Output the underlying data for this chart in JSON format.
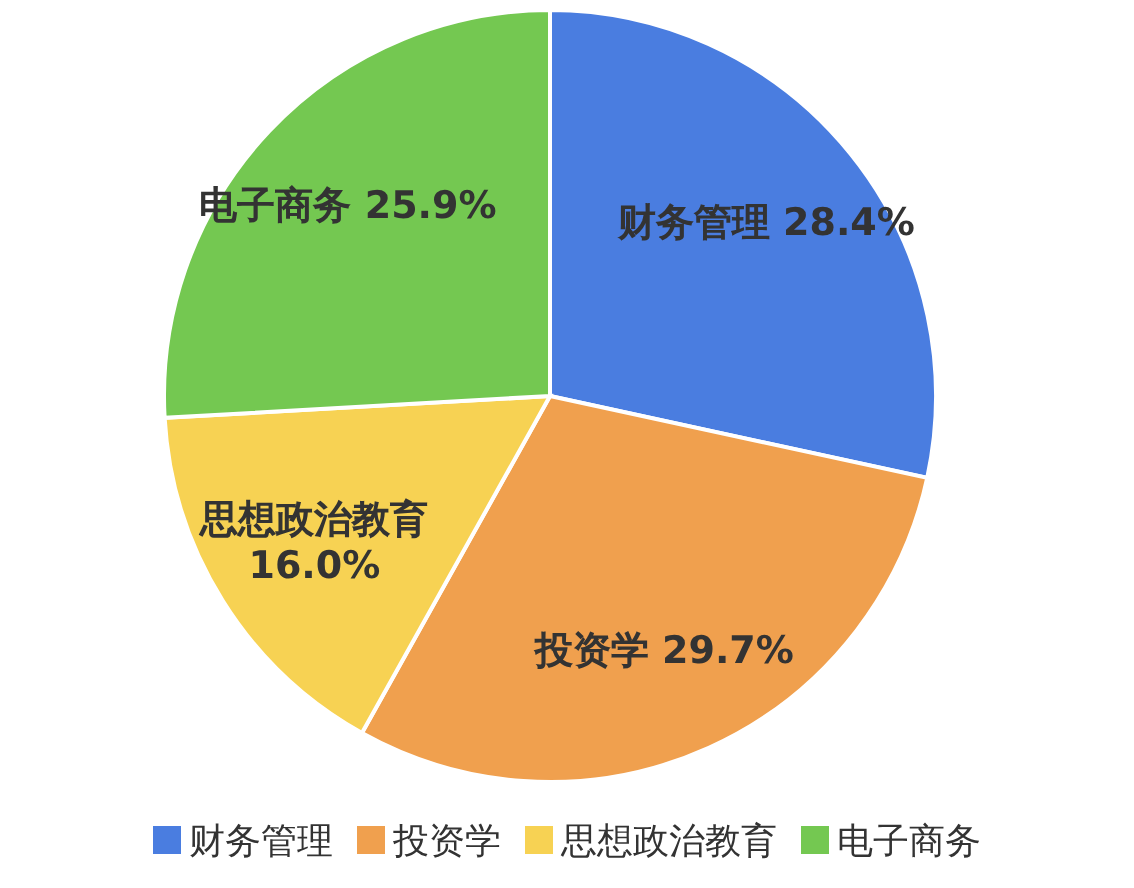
{
  "chart_data": {
    "type": "pie",
    "categories": [
      "财务管理",
      "投资学",
      "思想政治教育",
      "电子商务"
    ],
    "values": [
      28.4,
      29.7,
      16.0,
      25.9
    ],
    "value_labels": [
      "28.4%",
      "29.7%",
      "16.0%",
      "25.9%"
    ],
    "colors": [
      "#4a7de0",
      "#f0a04e",
      "#f7d253",
      "#74c851"
    ],
    "legend": "bottom"
  }
}
